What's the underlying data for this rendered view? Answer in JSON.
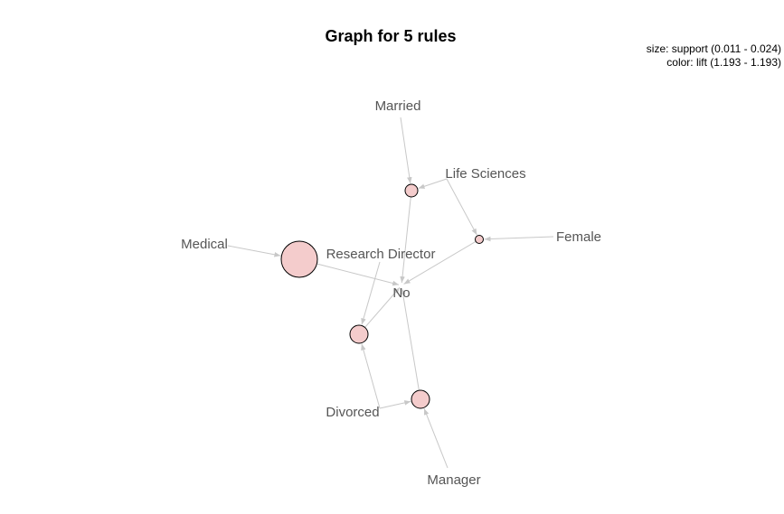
{
  "title": "Graph for 5 rules",
  "legend": {
    "size": "size: support (0.011 - 0.024)",
    "color": "color: lift (1.193 - 1.193)"
  },
  "colors": {
    "rule_fill": "#f4cccc",
    "edge": "#c8c8c8",
    "label": "#555555"
  },
  "items": [
    {
      "id": "married",
      "label": "Married"
    },
    {
      "id": "life",
      "label": "Life Sciences"
    },
    {
      "id": "female",
      "label": "Female"
    },
    {
      "id": "medical",
      "label": "Medical"
    },
    {
      "id": "research",
      "label": "Research Director"
    },
    {
      "id": "no",
      "label": "No"
    },
    {
      "id": "divorced",
      "label": "Divorced"
    },
    {
      "id": "manager",
      "label": "Manager"
    }
  ],
  "rules": [
    {
      "id": "r1",
      "lhs": [
        "married",
        "life"
      ],
      "rhs": "no"
    },
    {
      "id": "r2",
      "lhs": [
        "life",
        "female"
      ],
      "rhs": "no"
    },
    {
      "id": "r3",
      "lhs": [
        "medical",
        "research"
      ],
      "rhs": "no"
    },
    {
      "id": "r4",
      "lhs": [
        "divorced",
        "research"
      ],
      "rhs": "no"
    },
    {
      "id": "r5",
      "lhs": [
        "divorced",
        "manager"
      ],
      "rhs": "no"
    }
  ]
}
